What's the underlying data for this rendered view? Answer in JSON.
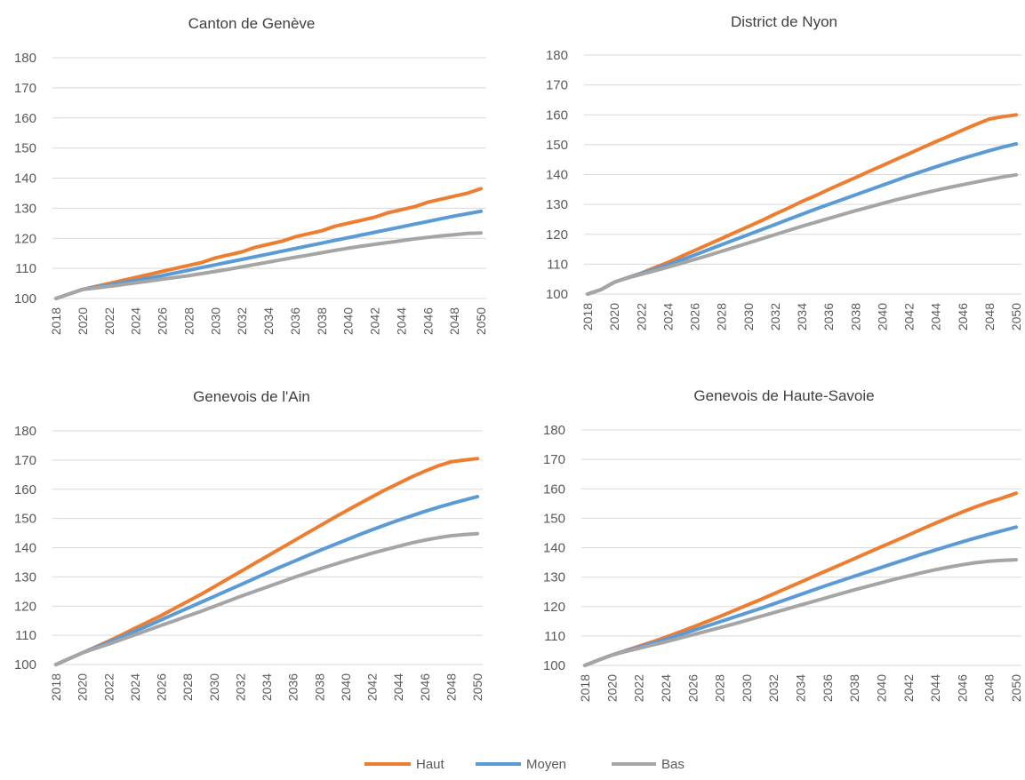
{
  "chart_data": [
    {
      "type": "line",
      "title": "Canton de Genève",
      "xlabel": "",
      "ylabel": "",
      "ylim": [
        100,
        180
      ],
      "grid": true,
      "x": [
        2018,
        2019,
        2020,
        2021,
        2022,
        2023,
        2024,
        2025,
        2026,
        2027,
        2028,
        2029,
        2030,
        2031,
        2032,
        2033,
        2034,
        2035,
        2036,
        2037,
        2038,
        2039,
        2040,
        2041,
        2042,
        2043,
        2044,
        2045,
        2046,
        2047,
        2048,
        2049,
        2050
      ],
      "series": [
        {
          "name": "Haut",
          "color": "#ed7d31",
          "values": [
            100,
            101.5,
            103,
            104,
            105,
            106,
            107,
            108,
            109,
            110,
            111,
            112,
            113.5,
            114.5,
            115.5,
            117,
            118,
            119,
            120.5,
            121.5,
            122.5,
            124,
            125,
            126,
            127,
            128.5,
            129.5,
            130.5,
            132,
            133,
            134,
            135,
            136.5
          ]
        },
        {
          "name": "Moyen",
          "color": "#5b9bd5",
          "values": [
            100,
            101.5,
            103,
            103.8,
            104.5,
            105.3,
            106,
            106.8,
            107.6,
            108.5,
            109.4,
            110.3,
            111.2,
            112.1,
            113,
            113.9,
            114.8,
            115.7,
            116.6,
            117.5,
            118.4,
            119.3,
            120.2,
            121.1,
            122,
            122.9,
            123.8,
            124.7,
            125.6,
            126.5,
            127.4,
            128.2,
            129
          ]
        },
        {
          "name": "Bas",
          "color": "#a5a5a5",
          "values": [
            100,
            101.5,
            103,
            103.5,
            104,
            104.6,
            105.2,
            105.8,
            106.4,
            107,
            107.6,
            108.3,
            109,
            109.7,
            110.5,
            111.3,
            112.1,
            112.9,
            113.7,
            114.4,
            115.2,
            116,
            116.7,
            117.4,
            118,
            118.6,
            119.2,
            119.8,
            120.3,
            120.8,
            121.2,
            121.6,
            121.8
          ]
        }
      ]
    },
    {
      "type": "line",
      "title": "District de Nyon",
      "xlabel": "",
      "ylabel": "",
      "ylim": [
        100,
        180
      ],
      "grid": true,
      "x": [
        2018,
        2019,
        2020,
        2021,
        2022,
        2023,
        2024,
        2025,
        2026,
        2027,
        2028,
        2029,
        2030,
        2031,
        2032,
        2033,
        2034,
        2035,
        2036,
        2037,
        2038,
        2039,
        2040,
        2041,
        2042,
        2043,
        2044,
        2045,
        2046,
        2047,
        2048,
        2049,
        2050
      ],
      "series": [
        {
          "name": "Haut",
          "color": "#ed7d31",
          "values": [
            100,
            101.5,
            104,
            105.5,
            107,
            108.8,
            110.6,
            112.6,
            114.6,
            116.6,
            118.6,
            120.6,
            122.6,
            124.6,
            126.8,
            128.8,
            131,
            132.9,
            135,
            137,
            139,
            141,
            143,
            145,
            147,
            149,
            151,
            152.9,
            154.9,
            156.8,
            158.6,
            159.4,
            160
          ]
        },
        {
          "name": "Moyen",
          "color": "#5b9bd5",
          "values": [
            100,
            101.5,
            104,
            105.5,
            106.9,
            108.3,
            109.8,
            111.4,
            113.1,
            114.8,
            116.5,
            118.2,
            119.9,
            121.6,
            123.3,
            125,
            126.7,
            128.4,
            130,
            131.6,
            133.2,
            134.8,
            136.4,
            138,
            139.6,
            141.1,
            142.6,
            144,
            145.4,
            146.7,
            148,
            149.2,
            150.3
          ]
        },
        {
          "name": "Bas",
          "color": "#a5a5a5",
          "values": [
            100,
            101.5,
            104,
            105.4,
            106.6,
            107.8,
            109,
            110.3,
            111.6,
            112.9,
            114.3,
            115.7,
            117.1,
            118.5,
            119.9,
            121.3,
            122.7,
            124,
            125.3,
            126.6,
            127.9,
            129.1,
            130.3,
            131.5,
            132.6,
            133.7,
            134.7,
            135.7,
            136.6,
            137.5,
            138.4,
            139.2,
            139.9
          ]
        }
      ]
    },
    {
      "type": "line",
      "title": "Genevois de l'Ain",
      "xlabel": "",
      "ylabel": "",
      "ylim": [
        100,
        180
      ],
      "grid": true,
      "x": [
        2018,
        2019,
        2020,
        2021,
        2022,
        2023,
        2024,
        2025,
        2026,
        2027,
        2028,
        2029,
        2030,
        2031,
        2032,
        2033,
        2034,
        2035,
        2036,
        2037,
        2038,
        2039,
        2040,
        2041,
        2042,
        2043,
        2044,
        2045,
        2046,
        2047,
        2048,
        2049,
        2050
      ],
      "series": [
        {
          "name": "Haut",
          "color": "#ed7d31",
          "values": [
            100,
            102,
            104,
            106,
            108,
            110.2,
            112.4,
            114.6,
            116.8,
            119.2,
            121.6,
            124,
            126.6,
            129.2,
            131.8,
            134.4,
            137,
            139.6,
            142.2,
            144.8,
            147.4,
            150,
            152.5,
            155,
            157.4,
            159.8,
            162,
            164.2,
            166.2,
            168,
            169.4,
            170,
            170.5
          ]
        },
        {
          "name": "Moyen",
          "color": "#5b9bd5",
          "values": [
            100,
            102,
            104,
            105.8,
            107.6,
            109.5,
            111.4,
            113.3,
            115.3,
            117.3,
            119.3,
            121.3,
            123.3,
            125.3,
            127.3,
            129.3,
            131.3,
            133.3,
            135.2,
            137.1,
            139,
            140.8,
            142.6,
            144.4,
            146.1,
            147.8,
            149.4,
            150.9,
            152.4,
            153.8,
            155.1,
            156.3,
            157.5
          ]
        },
        {
          "name": "Bas",
          "color": "#a5a5a5",
          "values": [
            100,
            102,
            104,
            105.5,
            107,
            108.6,
            110.2,
            111.8,
            113.4,
            115,
            116.6,
            118.2,
            119.9,
            121.6,
            123.3,
            124.9,
            126.5,
            128.1,
            129.7,
            131.2,
            132.7,
            134.1,
            135.5,
            136.8,
            138.1,
            139.3,
            140.5,
            141.6,
            142.6,
            143.4,
            144.1,
            144.5,
            144.8
          ]
        }
      ]
    },
    {
      "type": "line",
      "title": "Genevois de Haute-Savoie",
      "xlabel": "",
      "ylabel": "",
      "ylim": [
        100,
        180
      ],
      "grid": true,
      "x": [
        2018,
        2019,
        2020,
        2021,
        2022,
        2023,
        2024,
        2025,
        2026,
        2027,
        2028,
        2029,
        2030,
        2031,
        2032,
        2033,
        2034,
        2035,
        2036,
        2037,
        2038,
        2039,
        2040,
        2041,
        2042,
        2043,
        2044,
        2045,
        2046,
        2047,
        2048,
        2049,
        2050
      ],
      "series": [
        {
          "name": "Haut",
          "color": "#ed7d31",
          "values": [
            100,
            101.8,
            103.5,
            105,
            106.5,
            108,
            109.6,
            111.3,
            113,
            114.8,
            116.6,
            118.5,
            120.4,
            122.3,
            124.3,
            126.3,
            128.3,
            130.3,
            132.3,
            134.3,
            136.3,
            138.3,
            140.3,
            142.3,
            144.3,
            146.3,
            148.3,
            150.2,
            152.1,
            153.9,
            155.5,
            156.9,
            158.5
          ]
        },
        {
          "name": "Moyen",
          "color": "#5b9bd5",
          "values": [
            100,
            101.8,
            103.5,
            104.9,
            106.2,
            107.5,
            108.9,
            110.3,
            111.8,
            113.3,
            114.8,
            116.3,
            117.8,
            119.3,
            120.9,
            122.5,
            124.1,
            125.7,
            127.3,
            128.8,
            130.3,
            131.8,
            133.3,
            134.8,
            136.3,
            137.8,
            139.2,
            140.6,
            142,
            143.3,
            144.6,
            145.8,
            147
          ]
        },
        {
          "name": "Bas",
          "color": "#a5a5a5",
          "values": [
            100,
            101.8,
            103.5,
            104.7,
            105.8,
            106.9,
            108,
            109.2,
            110.4,
            111.6,
            112.8,
            114,
            115.3,
            116.6,
            117.9,
            119.2,
            120.5,
            121.8,
            123.1,
            124.4,
            125.7,
            126.9,
            128.1,
            129.3,
            130.4,
            131.5,
            132.5,
            133.4,
            134.2,
            134.9,
            135.4,
            135.7,
            135.9
          ]
        }
      ]
    }
  ],
  "legend": [
    {
      "label": "Haut",
      "color": "#ed7d31"
    },
    {
      "label": "Moyen",
      "color": "#5b9bd5"
    },
    {
      "label": "Bas",
      "color": "#a5a5a5"
    }
  ]
}
